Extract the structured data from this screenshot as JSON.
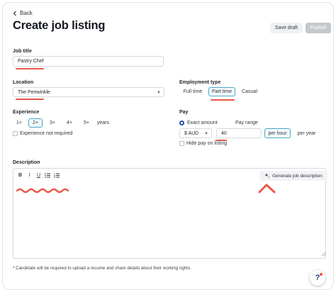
{
  "header": {
    "back_label": "Back",
    "title": "Create job listing",
    "save_draft_label": "Save draft",
    "publish_label": "Publish"
  },
  "job_title": {
    "label": "Job title",
    "value": "Pastry Chef"
  },
  "location": {
    "label": "Location",
    "value": "The Periwinkle"
  },
  "employment_type": {
    "label": "Employment type",
    "options": [
      "Full time",
      "Part time",
      "Casual"
    ],
    "selected": "Part time"
  },
  "experience": {
    "label": "Experience",
    "options": [
      "1+",
      "2+",
      "3+",
      "4+",
      "5+"
    ],
    "selected": "2+",
    "unit": "years",
    "not_required_label": "Experience not required"
  },
  "pay": {
    "label": "Pay",
    "exact_amount_label": "Exact amount",
    "pay_range_label": "Pay range",
    "currency": "$ AUD",
    "amount": "40",
    "per_hour_label": "per hour",
    "per_year_label": "per year",
    "hide_pay_label": "Hide pay on listing"
  },
  "description": {
    "label": "Description",
    "toolbar": [
      "B",
      "I",
      "U"
    ],
    "generate_label": "Generate job description"
  },
  "footer": {
    "note": "* Candidate will be required to upload a resume and share details about their working rights."
  },
  "help": {
    "label": "?"
  },
  "colors": {
    "accent": "#4aa7c8",
    "annotation": "#e8584a",
    "primary_text": "#141820"
  }
}
